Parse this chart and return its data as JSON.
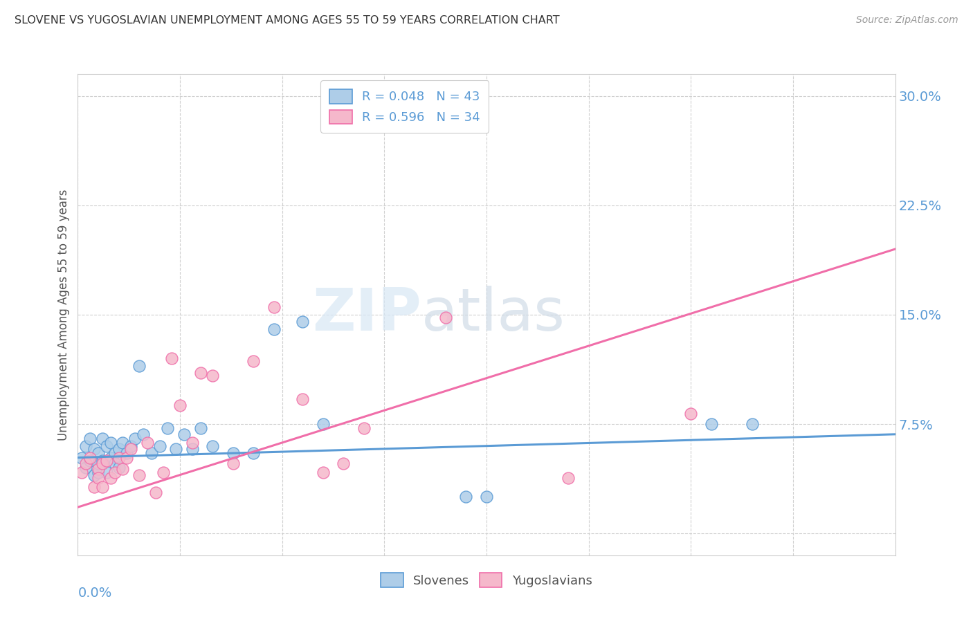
{
  "title": "SLOVENE VS YUGOSLAVIAN UNEMPLOYMENT AMONG AGES 55 TO 59 YEARS CORRELATION CHART",
  "source": "Source: ZipAtlas.com",
  "ylabel": "Unemployment Among Ages 55 to 59 years",
  "xlim": [
    0.0,
    0.2
  ],
  "ylim": [
    -0.015,
    0.315
  ],
  "yticks": [
    0.0,
    0.075,
    0.15,
    0.225,
    0.3
  ],
  "ytick_labels": [
    "",
    "7.5%",
    "15.0%",
    "22.5%",
    "30.0%"
  ],
  "xtick_minor": [
    0.025,
    0.05,
    0.075,
    0.1,
    0.125,
    0.15,
    0.175
  ],
  "legend_slovenes_R": "R = 0.048",
  "legend_slovenes_N": "N = 43",
  "legend_yugoslavians_R": "R = 0.596",
  "legend_yugoslavians_N": "N = 34",
  "slovenes_color": "#aecde8",
  "yugoslavians_color": "#f5b8cb",
  "slovenes_line_color": "#5b9bd5",
  "yugoslavians_line_color": "#f06ea9",
  "axis_tick_color": "#5b9bd5",
  "grid_color": "#d0d0d0",
  "watermark_zip": "ZIP",
  "watermark_atlas": "atlas",
  "slovenes_x": [
    0.001,
    0.002,
    0.002,
    0.003,
    0.003,
    0.004,
    0.004,
    0.005,
    0.005,
    0.005,
    0.006,
    0.006,
    0.007,
    0.007,
    0.008,
    0.008,
    0.009,
    0.009,
    0.01,
    0.01,
    0.011,
    0.012,
    0.013,
    0.014,
    0.015,
    0.016,
    0.018,
    0.02,
    0.022,
    0.024,
    0.026,
    0.028,
    0.03,
    0.033,
    0.038,
    0.043,
    0.048,
    0.055,
    0.06,
    0.095,
    0.1,
    0.155,
    0.165
  ],
  "slovenes_y": [
    0.052,
    0.045,
    0.06,
    0.05,
    0.065,
    0.04,
    0.058,
    0.042,
    0.055,
    0.048,
    0.065,
    0.05,
    0.06,
    0.042,
    0.062,
    0.052,
    0.055,
    0.048,
    0.058,
    0.045,
    0.062,
    0.055,
    0.06,
    0.065,
    0.115,
    0.068,
    0.055,
    0.06,
    0.072,
    0.058,
    0.068,
    0.058,
    0.072,
    0.06,
    0.055,
    0.055,
    0.14,
    0.145,
    0.075,
    0.025,
    0.025,
    0.075,
    0.075
  ],
  "yugoslavians_x": [
    0.001,
    0.002,
    0.003,
    0.004,
    0.005,
    0.005,
    0.006,
    0.006,
    0.007,
    0.008,
    0.009,
    0.01,
    0.011,
    0.012,
    0.013,
    0.015,
    0.017,
    0.019,
    0.021,
    0.023,
    0.025,
    0.028,
    0.03,
    0.033,
    0.038,
    0.043,
    0.048,
    0.055,
    0.06,
    0.065,
    0.07,
    0.09,
    0.12,
    0.15
  ],
  "yugoslavians_y": [
    0.042,
    0.048,
    0.052,
    0.032,
    0.044,
    0.038,
    0.048,
    0.032,
    0.05,
    0.038,
    0.042,
    0.052,
    0.044,
    0.052,
    0.058,
    0.04,
    0.062,
    0.028,
    0.042,
    0.12,
    0.088,
    0.062,
    0.11,
    0.108,
    0.048,
    0.118,
    0.155,
    0.092,
    0.042,
    0.048,
    0.072,
    0.148,
    0.038,
    0.082
  ],
  "slovenes_line_x": [
    0.0,
    0.2
  ],
  "slovenes_line_y": [
    0.052,
    0.068
  ],
  "yugoslavians_line_x": [
    0.0,
    0.2
  ],
  "yugoslavians_line_y": [
    0.018,
    0.195
  ]
}
